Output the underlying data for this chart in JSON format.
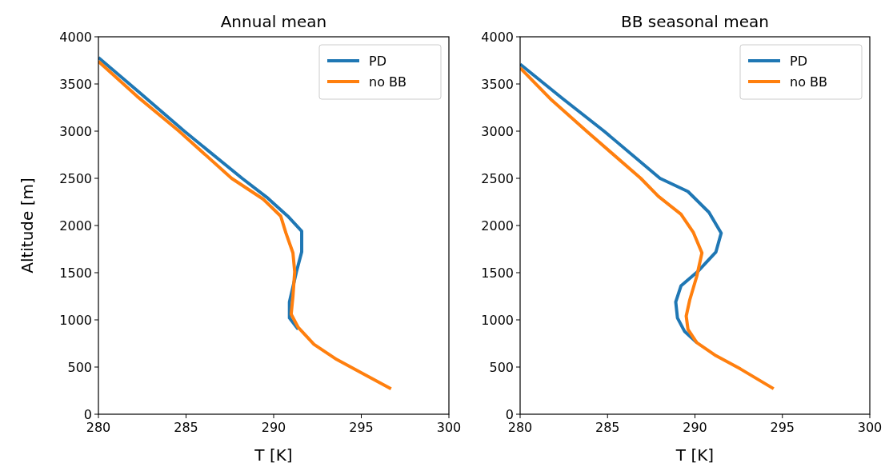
{
  "chart_data": [
    {
      "type": "line",
      "title": "Annual mean",
      "xlabel": "T [K]",
      "ylabel": "Altitude [m]",
      "xlim": [
        280,
        300
      ],
      "xticks": [
        280,
        285,
        290,
        295,
        300
      ],
      "ylim": [
        0,
        4000
      ],
      "yticks": [
        0,
        500,
        1000,
        1500,
        2000,
        2500,
        3000,
        3500,
        4000
      ],
      "grid": false,
      "legend": "top right",
      "line_style": "solid",
      "series": [
        {
          "name": "PD",
          "color": "#1f77b4",
          "x": [
            280,
            282.4,
            284.9,
            288.2,
            289.6,
            290.8,
            291.6,
            291.6,
            291.3,
            290.9,
            290.9,
            291.4,
            null,
            null,
            null,
            null
          ],
          "values": [
            3780,
            3400,
            3000,
            2500,
            2300,
            2100,
            1940,
            1720,
            1510,
            1190,
            1020,
            900,
            null,
            null,
            null,
            null
          ]
        },
        {
          "name": "no BB",
          "color": "#ff7f0e",
          "x": [
            280,
            282.2,
            284.6,
            287.6,
            289.4,
            290.4,
            290.7,
            291.1,
            291.2,
            291.1,
            291.0,
            291.4,
            292.3,
            293.6,
            295.2,
            296.7
          ],
          "values": [
            3740,
            3370,
            3000,
            2500,
            2280,
            2100,
            1920,
            1710,
            1510,
            1250,
            1060,
            920,
            740,
            580,
            420,
            270
          ]
        }
      ]
    },
    {
      "type": "line",
      "title": "BB seasonal mean",
      "xlabel": "T [K]",
      "xlim": [
        280,
        300
      ],
      "xticks": [
        280,
        285,
        290,
        295,
        300
      ],
      "ylim": [
        0,
        4000
      ],
      "yticks": [
        0,
        500,
        1000,
        1500,
        2000,
        2500,
        3000,
        3500,
        4000
      ],
      "grid": false,
      "legend": "top right",
      "line_style": "solid",
      "series": [
        {
          "name": "PD",
          "color": "#1f77b4",
          "x": [
            280,
            282.4,
            284.8,
            288.0,
            289.6,
            290.8,
            291.5,
            291.2,
            290.2,
            289.2,
            288.9,
            289.0,
            289.4,
            290.1,
            null,
            null,
            null
          ],
          "values": [
            3710,
            3350,
            3000,
            2500,
            2360,
            2140,
            1920,
            1720,
            1520,
            1360,
            1190,
            1020,
            880,
            760,
            null,
            null,
            null
          ]
        },
        {
          "name": "no BB",
          "color": "#ff7f0e",
          "x": [
            280,
            281.8,
            283.8,
            286.9,
            287.9,
            289.2,
            289.9,
            290.4,
            290.1,
            289.7,
            289.5,
            289.6,
            290.1,
            291.2,
            292.6,
            294.5
          ],
          "values": [
            3670,
            3330,
            3000,
            2500,
            2310,
            2120,
            1930,
            1710,
            1460,
            1210,
            1040,
            900,
            760,
            620,
            480,
            270
          ]
        }
      ]
    }
  ]
}
